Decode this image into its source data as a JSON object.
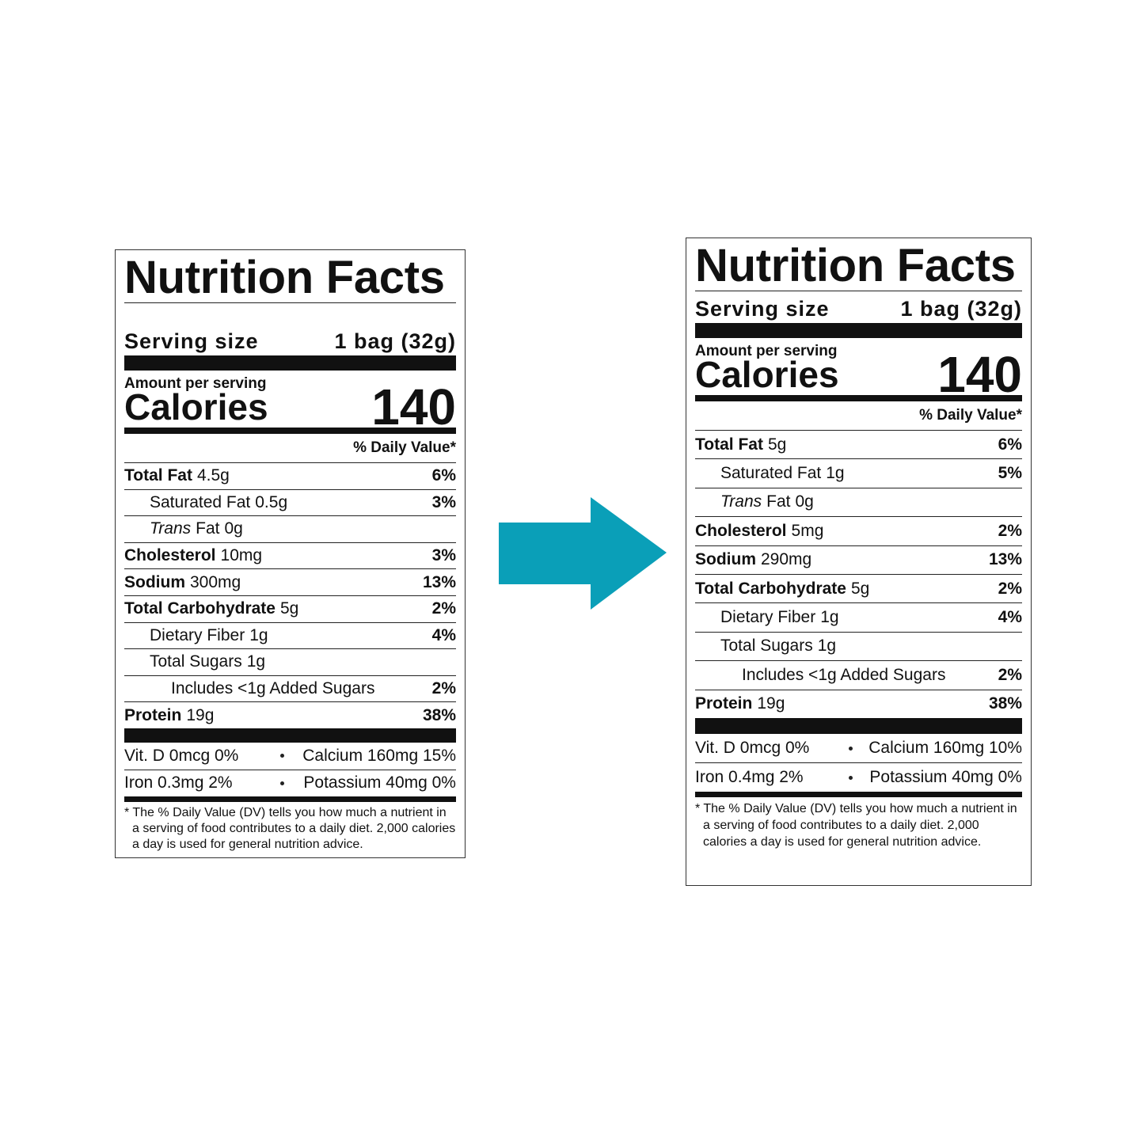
{
  "labels": [
    {
      "title": "Nutrition Facts",
      "serving_size_label": "Serving size",
      "serving_size": "1 bag (32g)",
      "amount_per_serving": "Amount per serving",
      "calories_label": "Calories",
      "calories": "140",
      "daily_value": "% Daily Value*",
      "nutrients": [
        {
          "name": "Total Fat",
          "amount": "4.5g",
          "dv": "6%",
          "sub": [
            {
              "name": "Saturated Fat",
              "amount": "0.5g",
              "dv": "3%"
            },
            {
              "name_italic": "Trans",
              "name": "Fat",
              "amount": "0g"
            }
          ]
        },
        {
          "name": "Cholesterol",
          "amount": "10mg",
          "dv": "3%"
        },
        {
          "name": "Sodium",
          "amount": "300mg",
          "dv": "13%"
        },
        {
          "name": "Total Carbohydrate",
          "amount": "5g",
          "dv": "2%",
          "sub": [
            {
              "name": "Dietary Fiber",
              "amount": "1g",
              "dv": "4%"
            },
            {
              "name": "Total Sugars",
              "amount": "1g",
              "sub": [
                {
                  "name": "Includes <1g Added Sugars",
                  "dv": "2%"
                }
              ]
            }
          ]
        },
        {
          "name": "Protein",
          "amount": "19g",
          "dv": "38%"
        }
      ],
      "minerals": [
        [
          "Vit. D 0mcg 0%",
          "Calcium 160mg 15%"
        ],
        [
          "Iron 0.3mg 2%",
          "Potassium 40mg 0%"
        ]
      ],
      "footnote": "* The % Daily Value (DV) tells you how much a nutrient in a serving of food contributes to a daily diet. 2,000 calories a day is used for general nutrition advice."
    },
    {
      "title": "Nutrition Facts",
      "serving_size_label": "Serving size",
      "serving_size": "1 bag (32g)",
      "amount_per_serving": "Amount per serving",
      "calories_label": "Calories",
      "calories": "140",
      "daily_value": "% Daily Value*",
      "nutrients": [
        {
          "name": "Total Fat",
          "amount": "5g",
          "dv": "6%",
          "sub": [
            {
              "name": "Saturated Fat",
              "amount": "1g",
              "dv": "5%"
            },
            {
              "name_italic": "Trans",
              "name": "Fat",
              "amount": "0g"
            }
          ]
        },
        {
          "name": "Cholesterol",
          "amount": "5mg",
          "dv": "2%"
        },
        {
          "name": "Sodium",
          "amount": "290mg",
          "dv": "13%"
        },
        {
          "name": "Total Carbohydrate",
          "amount": "5g",
          "dv": "2%",
          "sub": [
            {
              "name": "Dietary Fiber",
              "amount": "1g",
              "dv": "4%"
            },
            {
              "name": "Total Sugars",
              "amount": "1g",
              "sub": [
                {
                  "name": "Includes <1g Added Sugars",
                  "dv": "2%"
                }
              ]
            }
          ]
        },
        {
          "name": "Protein",
          "amount": "19g",
          "dv": "38%"
        }
      ],
      "minerals": [
        [
          "Vit. D 0mcg 0%",
          "Calcium 160mg 10%"
        ],
        [
          "Iron 0.4mg 2%",
          "Potassium 40mg 0%"
        ]
      ],
      "footnote": "* The % Daily Value (DV) tells you how much a nutrient in a serving of food contributes to a daily diet. 2,000 calories a day is used for general nutrition advice."
    }
  ]
}
